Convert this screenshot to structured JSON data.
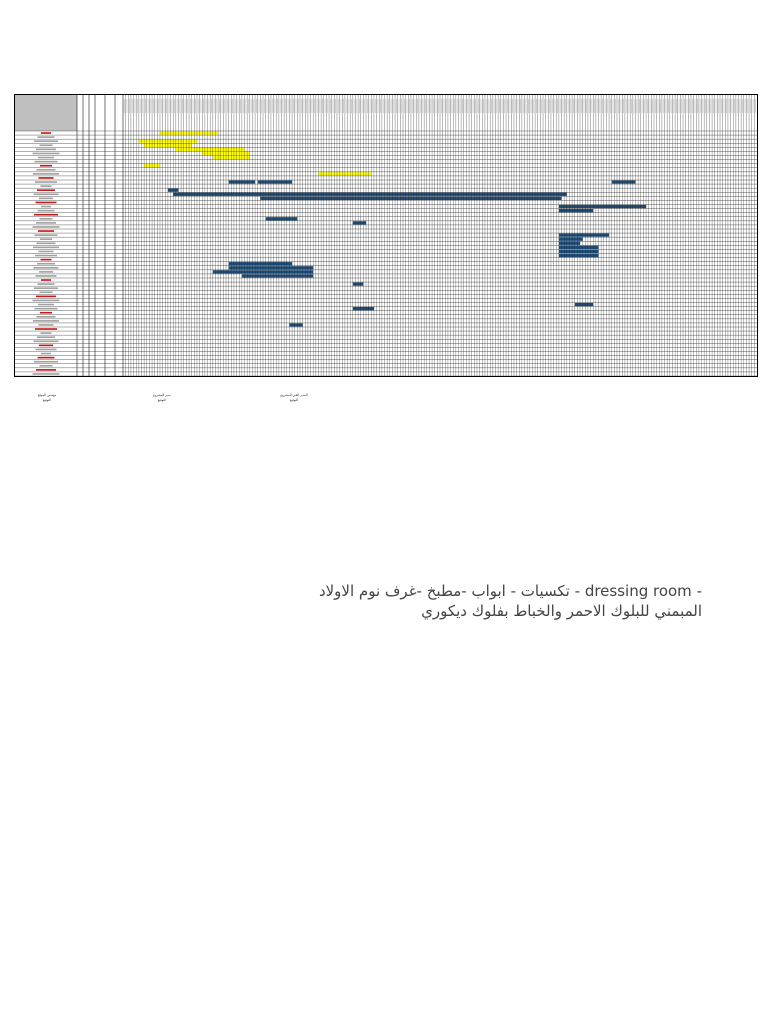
{
  "document": {
    "type": "gantt-schedule-sheet",
    "note_line_1": "- dressing room - تكسيات - ابواب -مطبخ -غرف نوم الاولاد",
    "note_line_2": "المبمني للبلوك الاحمر والخباط بفلوك ديكوري"
  },
  "signatures": [
    {
      "title": "مهندس الموقع",
      "subtitle": "التوقيع"
    },
    {
      "title": "مدير المشروع",
      "subtitle": "التوقيع"
    },
    {
      "title": "المدير الفني للمشروع",
      "subtitle": "التوقيع"
    }
  ],
  "colors": {
    "grid": "#1a1a1a",
    "header_fill": "#bfbfbf",
    "yellow_bar": "#ffff00",
    "blue_bar": "#1f4e79",
    "red_text": "#c00000",
    "dark_text": "#000000"
  },
  "schedule": {
    "rows": 60,
    "day_columns": 240,
    "left_columns": 6,
    "bars": [
      {
        "row": 0,
        "start": 14,
        "end": 36,
        "color": "yellow"
      },
      {
        "row": 2,
        "start": 6,
        "end": 28,
        "color": "yellow"
      },
      {
        "row": 3,
        "start": 8,
        "end": 26,
        "color": "yellow"
      },
      {
        "row": 4,
        "start": 20,
        "end": 46,
        "color": "yellow"
      },
      {
        "row": 5,
        "start": 30,
        "end": 48,
        "color": "yellow"
      },
      {
        "row": 6,
        "start": 34,
        "end": 48,
        "color": "yellow"
      },
      {
        "row": 8,
        "start": 8,
        "end": 14,
        "color": "yellow"
      },
      {
        "row": 10,
        "start": 74,
        "end": 94,
        "color": "yellow"
      },
      {
        "row": 12,
        "start": 40,
        "end": 50,
        "color": "blue"
      },
      {
        "row": 12,
        "start": 51,
        "end": 64,
        "color": "blue"
      },
      {
        "row": 12,
        "start": 185,
        "end": 194,
        "color": "blue"
      },
      {
        "row": 14,
        "start": 17,
        "end": 21,
        "color": "blue"
      },
      {
        "row": 15,
        "start": 19,
        "end": 168,
        "color": "blue"
      },
      {
        "row": 16,
        "start": 52,
        "end": 166,
        "color": "blue"
      },
      {
        "row": 18,
        "start": 165,
        "end": 198,
        "color": "blue"
      },
      {
        "row": 19,
        "start": 165,
        "end": 178,
        "color": "blue"
      },
      {
        "row": 21,
        "start": 54,
        "end": 66,
        "color": "blue"
      },
      {
        "row": 22,
        "start": 87,
        "end": 92,
        "color": "blue"
      },
      {
        "row": 25,
        "start": 165,
        "end": 184,
        "color": "blue"
      },
      {
        "row": 26,
        "start": 165,
        "end": 174,
        "color": "blue"
      },
      {
        "row": 27,
        "start": 165,
        "end": 173,
        "color": "blue"
      },
      {
        "row": 28,
        "start": 165,
        "end": 180,
        "color": "blue"
      },
      {
        "row": 29,
        "start": 165,
        "end": 180,
        "color": "blue"
      },
      {
        "row": 30,
        "start": 165,
        "end": 180,
        "color": "blue"
      },
      {
        "row": 32,
        "start": 40,
        "end": 64,
        "color": "blue"
      },
      {
        "row": 33,
        "start": 40,
        "end": 72,
        "color": "blue"
      },
      {
        "row": 34,
        "start": 34,
        "end": 72,
        "color": "blue"
      },
      {
        "row": 35,
        "start": 45,
        "end": 72,
        "color": "blue"
      },
      {
        "row": 37,
        "start": 87,
        "end": 91,
        "color": "blue"
      },
      {
        "row": 42,
        "start": 171,
        "end": 178,
        "color": "blue"
      },
      {
        "row": 43,
        "start": 87,
        "end": 95,
        "color": "blue"
      },
      {
        "row": 47,
        "start": 63,
        "end": 68,
        "color": "blue"
      }
    ],
    "red_label_rows": [
      0,
      8,
      11,
      14,
      17,
      20,
      24,
      31,
      36,
      40,
      44,
      48,
      52,
      55,
      58
    ]
  }
}
